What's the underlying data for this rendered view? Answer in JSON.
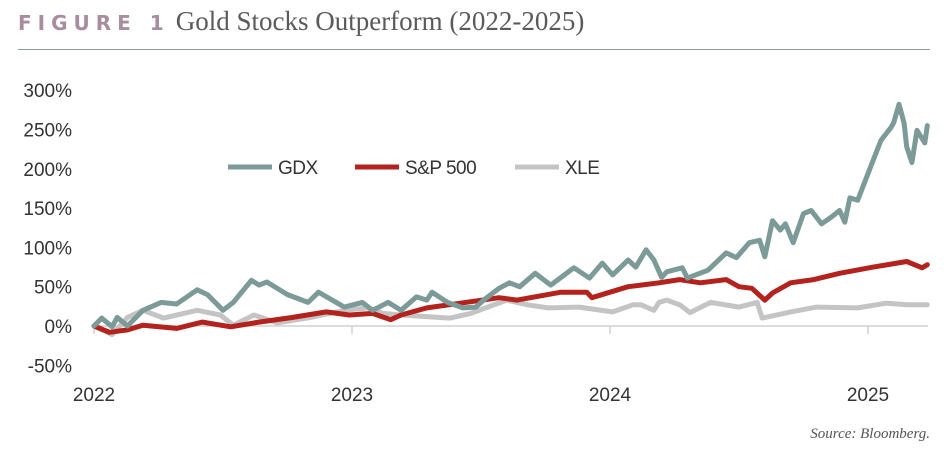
{
  "header": {
    "figure_label": "FIGURE 1",
    "title": "Gold Stocks Outperform (2022-2025)"
  },
  "source": "Source: Bloomberg.",
  "chart_data": {
    "type": "line",
    "title": "Gold Stocks Outperform (2022-2025)",
    "xlabel": "",
    "ylabel": "",
    "x_ticks": [
      "2022",
      "2023",
      "2024",
      "2025"
    ],
    "y_ticks": [
      "300%",
      "250%",
      "200%",
      "150%",
      "100%",
      "50%",
      "0%",
      "-50%"
    ],
    "ylim": [
      -50,
      300
    ],
    "xlim": [
      2022.0,
      2025.23
    ],
    "grid": false,
    "legend_position": "top-center",
    "series": [
      {
        "name": "GDX",
        "color": "#7b9a98",
        "points": [
          [
            2022.0,
            0
          ],
          [
            2022.03,
            10
          ],
          [
            2022.07,
            -1
          ],
          [
            2022.09,
            11
          ],
          [
            2022.13,
            0
          ],
          [
            2022.19,
            20
          ],
          [
            2022.26,
            30
          ],
          [
            2022.32,
            28
          ],
          [
            2022.4,
            46
          ],
          [
            2022.44,
            40
          ],
          [
            2022.5,
            20
          ],
          [
            2022.54,
            30
          ],
          [
            2022.61,
            58
          ],
          [
            2022.64,
            52
          ],
          [
            2022.67,
            56
          ],
          [
            2022.75,
            40
          ],
          [
            2022.83,
            30
          ],
          [
            2022.87,
            43
          ],
          [
            2022.97,
            24
          ],
          [
            2023.04,
            30
          ],
          [
            2023.08,
            20
          ],
          [
            2023.14,
            30
          ],
          [
            2023.19,
            20
          ],
          [
            2023.25,
            37
          ],
          [
            2023.29,
            33
          ],
          [
            2023.31,
            43
          ],
          [
            2023.37,
            30
          ],
          [
            2023.43,
            23
          ],
          [
            2023.48,
            24
          ],
          [
            2023.51,
            33
          ],
          [
            2023.57,
            48
          ],
          [
            2023.61,
            55
          ],
          [
            2023.65,
            50
          ],
          [
            2023.71,
            67
          ],
          [
            2023.77,
            52
          ],
          [
            2023.86,
            74
          ],
          [
            2023.92,
            61
          ],
          [
            2023.97,
            80
          ],
          [
            2024.01,
            65
          ],
          [
            2024.07,
            84
          ],
          [
            2024.1,
            75
          ],
          [
            2024.14,
            97
          ],
          [
            2024.17,
            84
          ],
          [
            2024.2,
            62
          ],
          [
            2024.22,
            69
          ],
          [
            2024.28,
            74
          ],
          [
            2024.3,
            61
          ],
          [
            2024.38,
            71
          ],
          [
            2024.45,
            93
          ],
          [
            2024.49,
            87
          ],
          [
            2024.54,
            106
          ],
          [
            2024.58,
            109
          ],
          [
            2024.6,
            88
          ],
          [
            2024.63,
            134
          ],
          [
            2024.66,
            122
          ],
          [
            2024.68,
            130
          ],
          [
            2024.71,
            106
          ],
          [
            2024.75,
            143
          ],
          [
            2024.78,
            147
          ],
          [
            2024.82,
            130
          ],
          [
            2024.86,
            139
          ],
          [
            2024.89,
            147
          ],
          [
            2024.91,
            132
          ],
          [
            2024.93,
            163
          ],
          [
            2024.96,
            160
          ],
          [
            2025.02,
            211
          ],
          [
            2025.05,
            236
          ],
          [
            2025.09,
            253
          ],
          [
            2025.1,
            259
          ],
          [
            2025.12,
            282
          ],
          [
            2025.14,
            258
          ],
          [
            2025.15,
            228
          ],
          [
            2025.17,
            208
          ],
          [
            2025.19,
            249
          ],
          [
            2025.22,
            233
          ],
          [
            2025.23,
            255
          ]
        ]
      },
      {
        "name": "S&P 500",
        "color": "#b3221c",
        "points": [
          [
            2022.0,
            0
          ],
          [
            2022.06,
            -8
          ],
          [
            2022.13,
            -5
          ],
          [
            2022.19,
            1
          ],
          [
            2022.32,
            -3
          ],
          [
            2022.42,
            5
          ],
          [
            2022.53,
            -1
          ],
          [
            2022.64,
            5
          ],
          [
            2022.77,
            11
          ],
          [
            2022.9,
            18
          ],
          [
            2022.99,
            14
          ],
          [
            2023.08,
            16
          ],
          [
            2023.15,
            8
          ],
          [
            2023.19,
            14
          ],
          [
            2023.29,
            23
          ],
          [
            2023.42,
            29
          ],
          [
            2023.57,
            36
          ],
          [
            2023.64,
            33
          ],
          [
            2023.81,
            43
          ],
          [
            2023.91,
            43
          ],
          [
            2023.93,
            36
          ],
          [
            2024.07,
            50
          ],
          [
            2024.12,
            52
          ],
          [
            2024.19,
            55
          ],
          [
            2024.27,
            59
          ],
          [
            2024.35,
            55
          ],
          [
            2024.45,
            59
          ],
          [
            2024.5,
            50
          ],
          [
            2024.55,
            48
          ],
          [
            2024.6,
            33
          ],
          [
            2024.63,
            42
          ],
          [
            2024.7,
            55
          ],
          [
            2024.79,
            59
          ],
          [
            2024.89,
            67
          ],
          [
            2025.02,
            75
          ],
          [
            2025.15,
            82
          ],
          [
            2025.21,
            74
          ],
          [
            2025.23,
            78
          ]
        ]
      },
      {
        "name": "XLE",
        "color": "#c4c4c4",
        "points": [
          [
            2022.0,
            0
          ],
          [
            2022.07,
            -11
          ],
          [
            2022.13,
            11
          ],
          [
            2022.19,
            20
          ],
          [
            2022.27,
            10
          ],
          [
            2022.4,
            20
          ],
          [
            2022.49,
            14
          ],
          [
            2022.54,
            1
          ],
          [
            2022.62,
            14
          ],
          [
            2022.71,
            4
          ],
          [
            2022.84,
            11
          ],
          [
            2022.97,
            20
          ],
          [
            2023.06,
            23
          ],
          [
            2023.12,
            16
          ],
          [
            2023.19,
            14
          ],
          [
            2023.38,
            10
          ],
          [
            2023.46,
            16
          ],
          [
            2023.6,
            33
          ],
          [
            2023.68,
            27
          ],
          [
            2023.76,
            23
          ],
          [
            2023.88,
            24
          ],
          [
            2024.01,
            18
          ],
          [
            2024.09,
            27
          ],
          [
            2024.12,
            27
          ],
          [
            2024.17,
            20
          ],
          [
            2024.19,
            30
          ],
          [
            2024.22,
            33
          ],
          [
            2024.27,
            27
          ],
          [
            2024.31,
            17
          ],
          [
            2024.39,
            30
          ],
          [
            2024.5,
            24
          ],
          [
            2024.57,
            30
          ],
          [
            2024.59,
            10
          ],
          [
            2024.7,
            18
          ],
          [
            2024.8,
            24
          ],
          [
            2024.96,
            23
          ],
          [
            2025.07,
            29
          ],
          [
            2025.15,
            27
          ],
          [
            2025.23,
            27
          ]
        ]
      }
    ]
  }
}
